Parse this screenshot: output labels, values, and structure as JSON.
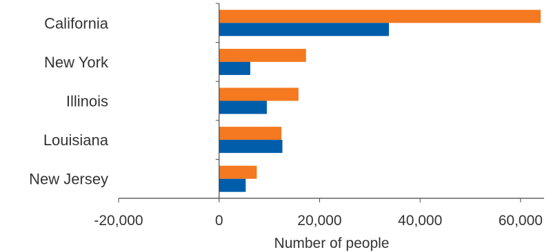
{
  "chart_data": {
    "type": "bar",
    "orientation": "horizontal",
    "categories": [
      "California",
      "New York",
      "Illinois",
      "Louisiana",
      "New Jersey"
    ],
    "series": [
      {
        "values": [
          64000,
          17300,
          15800,
          12400,
          7500
        ]
      },
      {
        "values": [
          33800,
          6200,
          9500,
          12600,
          5300
        ]
      }
    ],
    "xlabel": "Number of people",
    "ylabel": "",
    "xlim": [
      -20000,
      64000
    ],
    "xticks": [
      -20000,
      0,
      20000,
      40000,
      60000
    ],
    "xtick_labels": [
      "-20,000",
      "0",
      "20,000",
      "40,000",
      "60,000"
    ],
    "grid": false,
    "colors": [
      "#F47920",
      "#005DAA"
    ]
  }
}
